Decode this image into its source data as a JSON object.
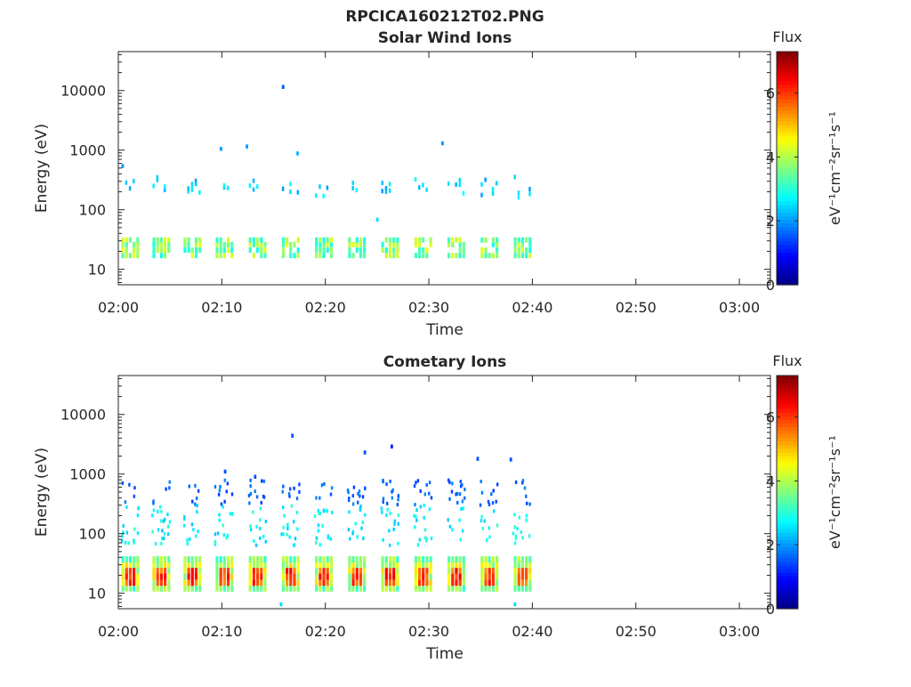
{
  "figure": {
    "title": "RPCICA160212T02.PNG"
  },
  "colors": {
    "axis": "#262626",
    "background": "#ffffff"
  },
  "chart_data": [
    {
      "type": "heatmap",
      "title": "Solar Wind Ions",
      "xlabel": "Time",
      "ylabel": "Energy (eV)",
      "yscale": "log",
      "xlim": [
        "02:00",
        "03:03"
      ],
      "ylim": [
        5.5,
        45000
      ],
      "xticks": [
        "02:00",
        "02:10",
        "02:20",
        "02:30",
        "02:40",
        "02:50",
        "03:00"
      ],
      "yticks": [
        "10",
        "100",
        "1000",
        "10000"
      ],
      "colorbar": {
        "label": "Flux",
        "unit": "eV⁻¹cm⁻²sr⁻¹s⁻¹",
        "ticks": [
          "0",
          "2",
          "4",
          "6"
        ],
        "range": [
          0,
          7.3
        ]
      },
      "grid": false,
      "burst_times": [
        "02:00.3",
        "02:03.3",
        "02:06.3",
        "02:09.4",
        "02:12.6",
        "02:15.8",
        "02:19.0",
        "02:22.2",
        "02:25.4",
        "02:28.6",
        "02:31.8",
        "02:35.0",
        "02:38.2"
      ],
      "data_band_energies_eV": [
        17,
        21,
        26,
        31,
        200,
        230,
        260
      ],
      "typical_flux_low_band": 3.5,
      "typical_flux_high_band": 2.4,
      "isolated_points": [
        {
          "time": "02:00.3",
          "energy": 540,
          "flux": 2
        },
        {
          "time": "02:09.8",
          "energy": 1050,
          "flux": 2
        },
        {
          "time": "02:12.3",
          "energy": 1150,
          "flux": 2
        },
        {
          "time": "02:15.8",
          "energy": 11500,
          "flux": 1.5
        },
        {
          "time": "02:17.2",
          "energy": 880,
          "flux": 2.2
        },
        {
          "time": "02:31.2",
          "energy": 1300,
          "flux": 2
        },
        {
          "time": "02:24.9",
          "energy": 68,
          "flux": 2.5
        }
      ]
    },
    {
      "type": "heatmap",
      "title": "Cometary Ions",
      "xlabel": "Time",
      "ylabel": "Energy (eV)",
      "yscale": "log",
      "xlim": [
        "02:00",
        "03:03"
      ],
      "ylim": [
        5.5,
        45000
      ],
      "xticks": [
        "02:00",
        "02:10",
        "02:20",
        "02:30",
        "02:40",
        "02:50",
        "03:00"
      ],
      "yticks": [
        "10",
        "100",
        "1000",
        "10000"
      ],
      "colorbar": {
        "label": "Flux",
        "unit": "eV⁻¹cm⁻²sr⁻¹s⁻¹",
        "ticks": [
          "0",
          "2",
          "4",
          "6"
        ],
        "range": [
          0,
          7.3
        ]
      },
      "grid": false,
      "burst_times": [
        "02:00.3",
        "02:03.3",
        "02:06.3",
        "02:09.4",
        "02:12.6",
        "02:15.8",
        "02:19.0",
        "02:22.2",
        "02:25.4",
        "02:28.6",
        "02:31.8",
        "02:35.0",
        "02:38.2"
      ],
      "data_band_energies_eV": [
        12,
        15,
        19,
        24,
        30,
        37
      ],
      "peak_flux_low_band": 6.5,
      "typical_flux_high_energy": 1.5,
      "isolated_points": [
        {
          "time": "02:16.7",
          "energy": 4400,
          "flux": 1.5
        },
        {
          "time": "02:26.3",
          "energy": 2900,
          "flux": 1.2
        },
        {
          "time": "02:23.7",
          "energy": 2300,
          "flux": 1.5
        },
        {
          "time": "02:10.2",
          "energy": 1100,
          "flux": 1.5
        },
        {
          "time": "02:13.1",
          "energy": 900,
          "flux": 1.5
        },
        {
          "time": "02:34.6",
          "energy": 1800,
          "flux": 1.5
        },
        {
          "time": "02:37.8",
          "energy": 1750,
          "flux": 1.5
        },
        {
          "time": "02:15.6",
          "energy": 6.5,
          "flux": 2.5
        },
        {
          "time": "02:38.2",
          "energy": 6.5,
          "flux": 2.5
        }
      ]
    }
  ]
}
